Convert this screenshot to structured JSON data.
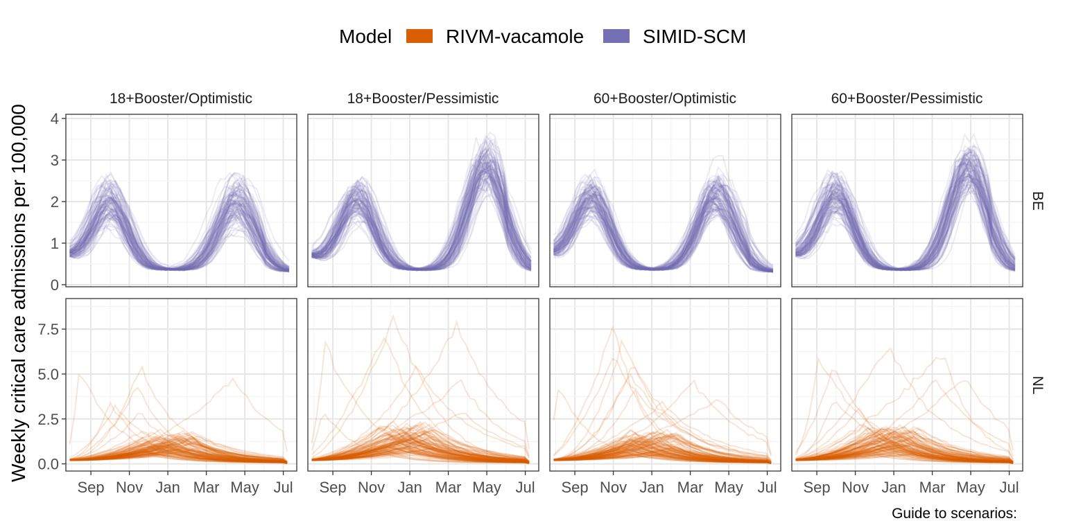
{
  "chart_data": {
    "type": "line",
    "legend": {
      "title": "Model",
      "position": "top",
      "entries": [
        {
          "label": "RIVM-vacamole",
          "color": "#d95f02"
        },
        {
          "label": "SIMID-SCM",
          "color": "#7570b3"
        }
      ]
    },
    "ylabel": "Weekly critical care admissions per 100,000",
    "x_tick_labels": [
      "Sep",
      "Nov",
      "Jan",
      "Mar",
      "May",
      "Jul"
    ],
    "x_tick_months": [
      1,
      3,
      5,
      7,
      9,
      11
    ],
    "x_range_months": [
      -0.3,
      11.7
    ],
    "grid": true,
    "facet_columns": [
      "18+Booster/Optimistic",
      "18+Booster/Pessimistic",
      "60+Booster/Optimistic",
      "60+Booster/Pessimistic"
    ],
    "facet_rows": [
      {
        "label": "BE",
        "model": "SIMID-SCM",
        "color": "#7570b3",
        "ylim": [
          -0.05,
          4.1
        ],
        "yticks": [
          0,
          1,
          2,
          3,
          4
        ],
        "ytick_labels": [
          "0",
          "1",
          "2",
          "3",
          "4"
        ]
      },
      {
        "label": "NL",
        "model": "RIVM-vacamole",
        "color": "#d95f02",
        "ylim": [
          -0.4,
          9.2
        ],
        "yticks": [
          0,
          2.5,
          5,
          7.5
        ],
        "ytick_labels": [
          "0.0",
          "2.5",
          "5.0",
          "7.5"
        ]
      }
    ],
    "series_per_panel": 100,
    "summary_peaks": {
      "BE": [
        {
          "scenario": "18+Booster/Optimistic",
          "peak1_month": 2.0,
          "peak1": 1.9,
          "peak2_month": 8.6,
          "peak2": 2.1,
          "max": 3.0
        },
        {
          "scenario": "18+Booster/Pessimistic",
          "peak1_month": 2.3,
          "peak1": 2.0,
          "peak2_month": 9.0,
          "peak2": 2.9,
          "max": 3.9
        },
        {
          "scenario": "60+Booster/Optimistic",
          "peak1_month": 1.9,
          "peak1": 2.0,
          "peak2_month": 8.4,
          "peak2": 2.2,
          "max": 3.1
        },
        {
          "scenario": "60+Booster/Pessimistic",
          "peak1_month": 2.0,
          "peak1": 2.1,
          "peak2_month": 8.9,
          "peak2": 2.9,
          "max": 3.9
        }
      ],
      "NL": [
        {
          "scenario": "18+Booster/Optimistic",
          "peak_month": 5.1,
          "typical_peak": 1.6,
          "max": 5.8
        },
        {
          "scenario": "18+Booster/Pessimistic",
          "peak_month": 5.0,
          "typical_peak": 2.0,
          "max": 8.3
        },
        {
          "scenario": "60+Booster/Optimistic",
          "peak_month": 5.0,
          "typical_peak": 1.6,
          "max": 8.7
        },
        {
          "scenario": "60+Booster/Pessimistic",
          "peak_month": 5.0,
          "typical_peak": 1.9,
          "max": 7.2
        }
      ]
    },
    "guide_note": "Guide to scenarios:"
  }
}
